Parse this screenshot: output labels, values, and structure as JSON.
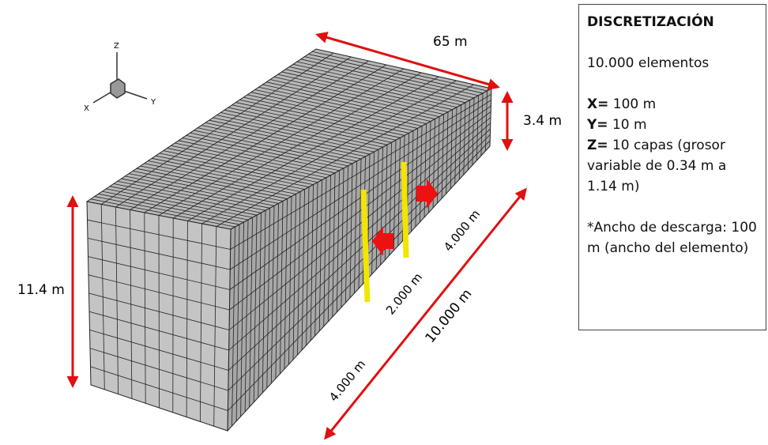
{
  "axes": {
    "z": "Z",
    "x": "X",
    "y": "Y"
  },
  "dimensions": {
    "width": "65 m",
    "top_height": "3.4 m",
    "front_height": "11.4 m",
    "length": "10.000 m",
    "segments": [
      "4.000 m",
      "2.000 m",
      "4.000 m"
    ]
  },
  "info": {
    "title": "DISCRETIZACIÓN",
    "elements": "10.000 elementos",
    "x": {
      "label": "X=",
      "text": "100 m"
    },
    "y": {
      "label": "Y=",
      "text": "10 m"
    },
    "z": {
      "label": "Z=",
      "text": "10 capas (grosor variable de 0.34 m a 1.14 m)"
    },
    "note": "*Ancho de descarga: 100 m (ancho del elemento)"
  }
}
